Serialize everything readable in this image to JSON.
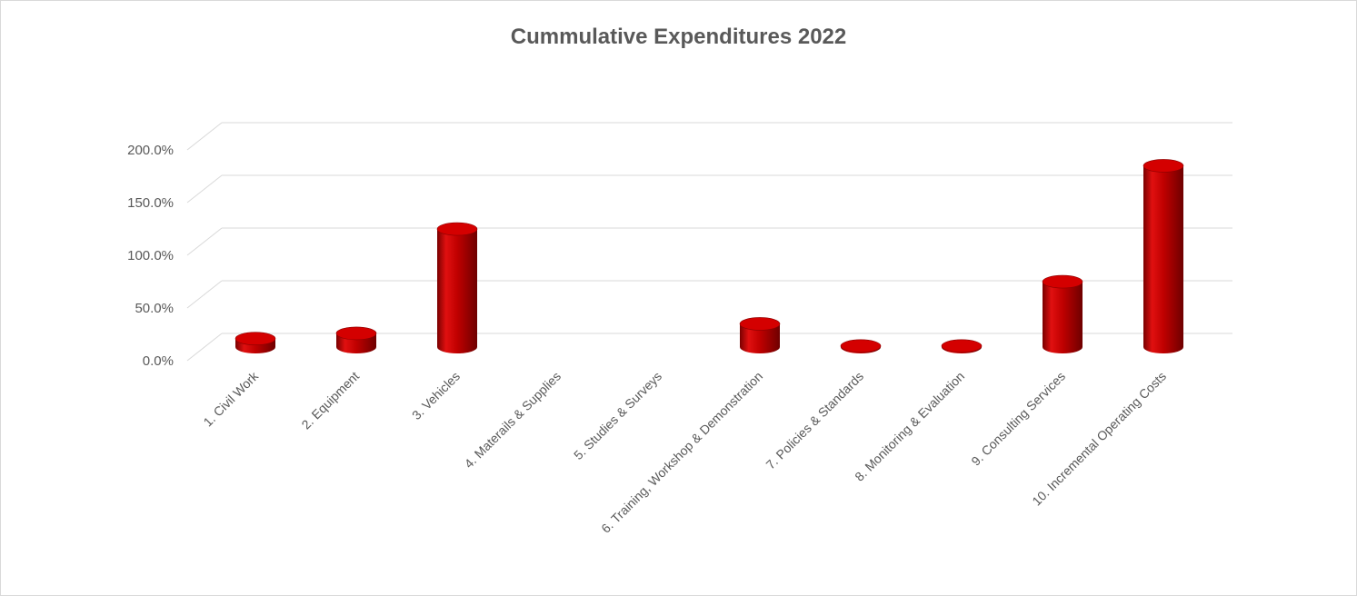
{
  "chart_data": {
    "type": "bar",
    "title": "Cummulative Expenditures 2022",
    "xlabel": "",
    "ylabel": "",
    "ylim": [
      0,
      200
    ],
    "yticks": [
      "0.0%",
      "50.0%",
      "100.0%",
      "150.0%",
      "200.0%"
    ],
    "grid": true,
    "legend": "none",
    "categories": [
      "1. Civil Work",
      "2. Equipment",
      "3. Vehicles",
      "4. Materails & Supplies",
      "5. Studies & Surveys",
      "6. Training, Workshop & Demonstration",
      "7. Policies & Standards",
      "8. Monitoring & Evaluation",
      "9. Consulting Services",
      "10. Incremental Operating Costs"
    ],
    "values": [
      8,
      13,
      112,
      0,
      0,
      22,
      1,
      1,
      62,
      172
    ],
    "unit": "%",
    "bar_color": "#c00000"
  }
}
